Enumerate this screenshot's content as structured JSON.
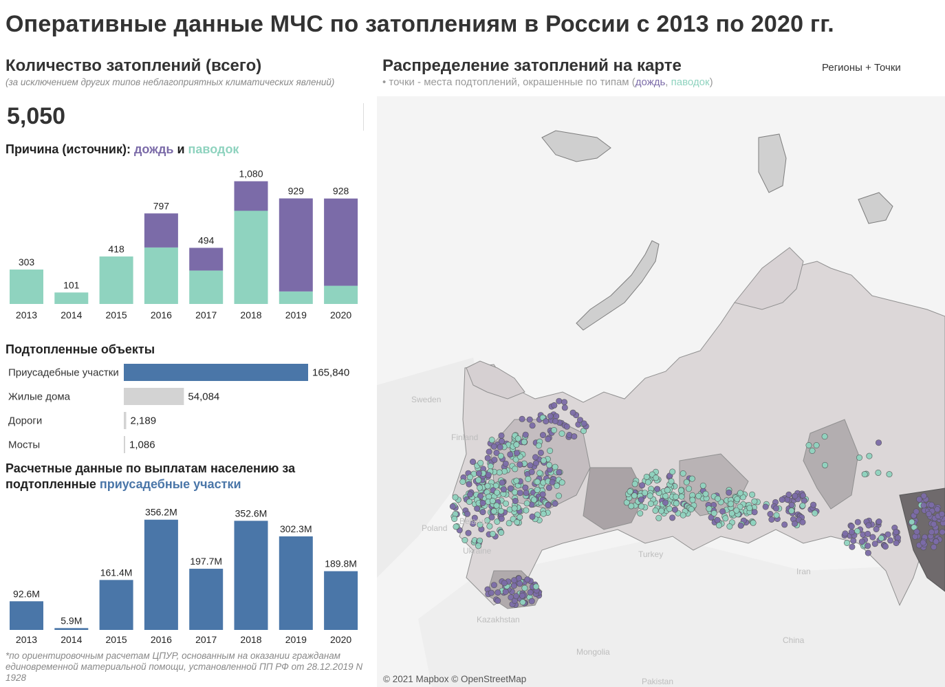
{
  "title": "Оперативные данные МЧС по затоплениям в России с 2013 по 2020 гг.",
  "total": {
    "title": "Количество затоплений (всего)",
    "note": "(за исключением других типов неблагоприятных климатических явлений)",
    "value": "5,050"
  },
  "cause": {
    "prefix": "Причина (источник):",
    "rain": "дождь",
    "and": "и",
    "flood": "паводок"
  },
  "colors": {
    "rain": "#7b6ba8",
    "flood": "#8fd3bf",
    "blue": "#4a76a8",
    "grey_bar": "#d3d3d3"
  },
  "chart_data": [
    {
      "type": "bar",
      "stacked": true,
      "title": "Причина (источник): дождь и паводок",
      "categories": [
        "2013",
        "2014",
        "2015",
        "2016",
        "2017",
        "2018",
        "2019",
        "2020"
      ],
      "totals": [
        "303",
        "101",
        "418",
        "797",
        "494",
        "1,080",
        "929",
        "928"
      ],
      "series": [
        {
          "name": "паводок",
          "values": [
            303,
            101,
            418,
            497,
            294,
            820,
            110,
            160
          ]
        },
        {
          "name": "дождь",
          "values": [
            0,
            0,
            0,
            300,
            200,
            260,
            819,
            768
          ]
        }
      ],
      "ylim": [
        0,
        1150
      ]
    },
    {
      "type": "bar",
      "orientation": "horizontal",
      "title": "Подтопленные объекты",
      "categories": [
        "Приусадебные участки",
        "Жилые дома",
        "Дороги",
        "Мосты"
      ],
      "values": [
        165840,
        54084,
        2189,
        1086
      ],
      "value_labels": [
        "165,840",
        "54,084",
        "2,189",
        "1,086"
      ],
      "highlight": "Приусадебные участки"
    },
    {
      "type": "bar",
      "title": "Расчетные данные по выплатам населению за подтопленные приусадебные участки",
      "categories": [
        "2013",
        "2014",
        "2015",
        "2016",
        "2017",
        "2018",
        "2019",
        "2020"
      ],
      "values": [
        92.6,
        5.9,
        161.4,
        356.2,
        197.7,
        352.6,
        302.3,
        189.8
      ],
      "value_labels": [
        "92.6M",
        "5.9M",
        "161.4M",
        "356.2M",
        "197.7M",
        "352.6M",
        "302.3M",
        "189.8M"
      ],
      "ylim": [
        0,
        400
      ]
    }
  ],
  "objects": {
    "title": "Подтопленные объекты"
  },
  "payments": {
    "title_line1": "Расчетные данные по выплатам населению за",
    "title_line2_prefix": "подтопленные",
    "title_line2_highlight": "приусадебные участки"
  },
  "footnote": "*по ориентировочным расчетам ЦПУР, основанным на оказании гражданам единовременной материальной помощи, установленной ПП РФ от 28.12.2019 N 1928",
  "map": {
    "title": "Распределение затоплений на карте",
    "subtitle_prefix": "• точки - места подтоплений, окрашенные по типам (",
    "subtitle_rain": "дождь",
    "subtitle_sep": ", ",
    "subtitle_flood": "паводок",
    "subtitle_suffix": ")",
    "toggle": "Регионы + Точки",
    "credit": "© 2021 Mapbox © OpenStreetMap",
    "countries": [
      {
        "name": "Sweden"
      },
      {
        "name": "Finland"
      },
      {
        "name": "Poland"
      },
      {
        "name": "Belarus"
      },
      {
        "name": "Ukraine"
      },
      {
        "name": "Turkey"
      },
      {
        "name": "Iran"
      },
      {
        "name": "Kazakhstan"
      },
      {
        "name": "Mongolia"
      },
      {
        "name": "China"
      },
      {
        "name": "Pakistan"
      }
    ]
  }
}
